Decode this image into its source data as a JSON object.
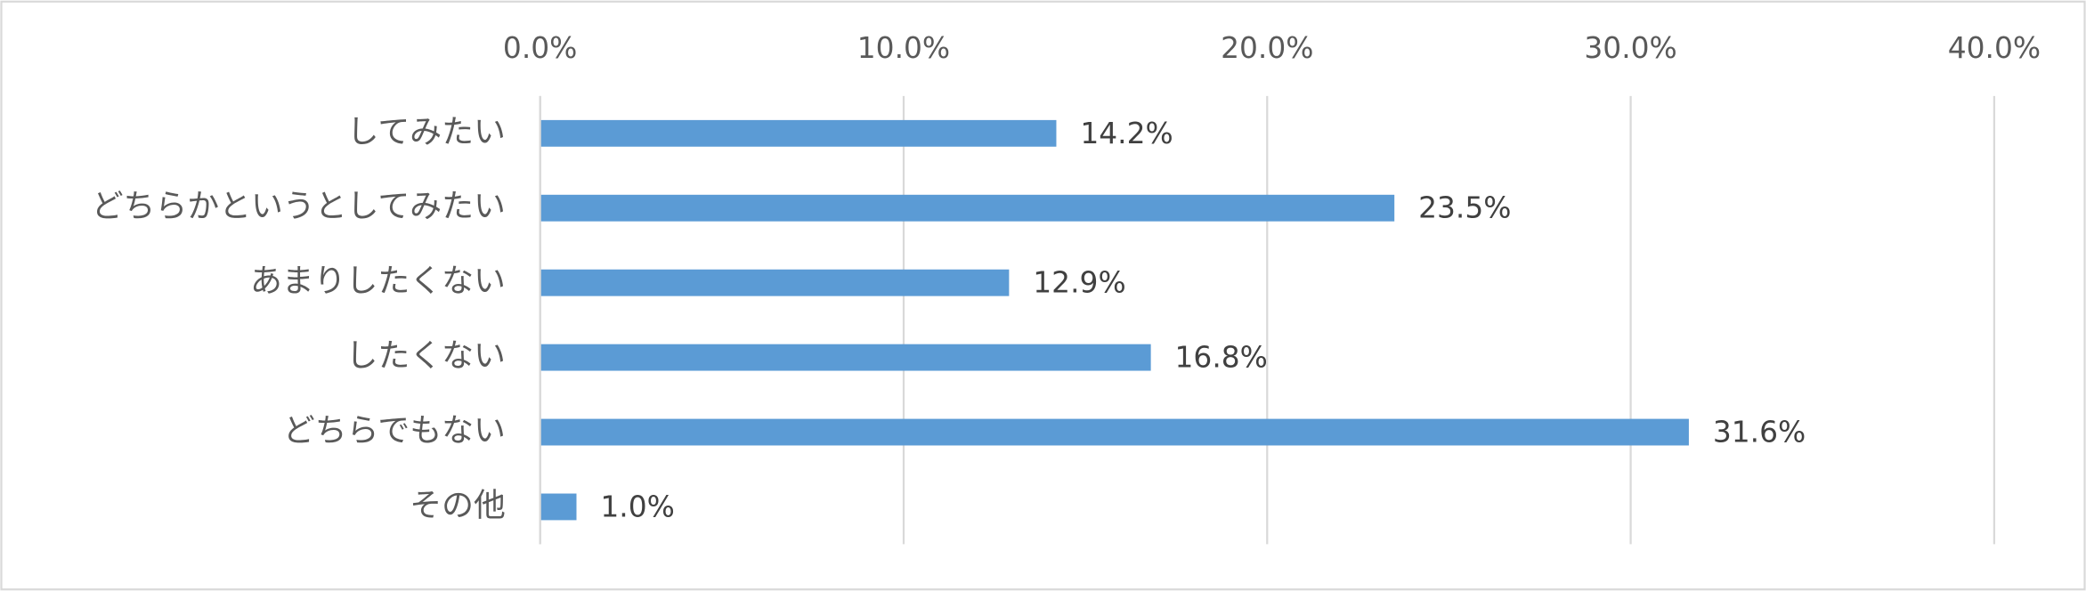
{
  "chart_data": {
    "type": "hbar",
    "categories": [
      "してみたい",
      "どちらかというとしてみたい",
      "あまりしたくない",
      "したくない",
      "どちらでもない",
      "その他"
    ],
    "values": [
      14.2,
      23.5,
      12.9,
      16.8,
      31.6,
      1.0
    ],
    "value_labels": [
      "14.2%",
      "23.5%",
      "12.9%",
      "16.8%",
      "31.6%",
      "1.0%"
    ],
    "color": "#5b9bd5",
    "xlim": [
      0,
      40
    ],
    "xticks": [
      {
        "value": 0,
        "label": "0.0%"
      },
      {
        "value": 10,
        "label": "10.0%"
      },
      {
        "value": 20,
        "label": "20.0%"
      },
      {
        "value": 30,
        "label": "30.0%"
      },
      {
        "value": 40,
        "label": "40.0%"
      }
    ],
    "grid": true
  }
}
